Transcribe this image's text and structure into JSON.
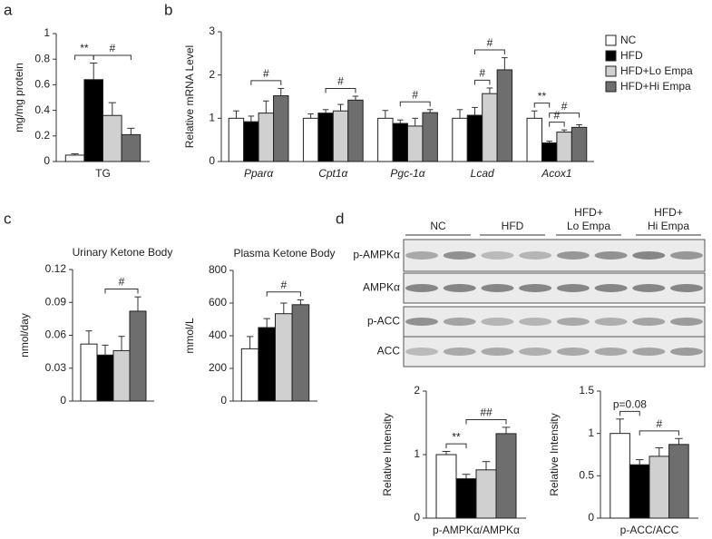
{
  "panel_labels": [
    "a",
    "b",
    "c",
    "d"
  ],
  "chart_data": [
    {
      "type": "bar",
      "ylabel": "mg/mg protein",
      "categories": [
        "TG"
      ],
      "series": [
        {
          "color": "#ffffff",
          "values": [
            0.05
          ],
          "errors": [
            0.01
          ]
        },
        {
          "color": "#000000",
          "values": [
            0.64
          ],
          "errors": [
            0.13
          ]
        },
        {
          "color": "#d0d0d0",
          "values": [
            0.36
          ],
          "errors": [
            0.1
          ]
        },
        {
          "color": "#6e6e6e",
          "values": [
            0.21
          ],
          "errors": [
            0.05
          ]
        }
      ],
      "ylim": [
        0,
        1
      ],
      "yticks": [
        0,
        0.2,
        0.4,
        0.6,
        0.8,
        1
      ],
      "annotations": [
        {
          "text": "**",
          "category": 0,
          "from": 0,
          "to": 1
        },
        {
          "text": "#",
          "category": 0,
          "from": 1,
          "to": 3
        }
      ]
    },
    {
      "type": "bar",
      "ylabel": "Relative mRNA Level",
      "categories": [
        "Pparα",
        "Cpt1α",
        "Pgc-1α",
        "Lcad",
        "Acox1"
      ],
      "category_style": "italic",
      "series": [
        {
          "name": "NC",
          "color": "#ffffff",
          "values": [
            1,
            1,
            1,
            1,
            1
          ],
          "errors": [
            0.17,
            0.1,
            0.18,
            0.2,
            0.17
          ]
        },
        {
          "name": "HFD",
          "color": "#000000",
          "values": [
            0.92,
            1.12,
            0.88,
            1.07,
            0.43
          ],
          "errors": [
            0.13,
            0.08,
            0.08,
            0.18,
            0.04
          ]
        },
        {
          "name": "HFD+Lo Empa",
          "color": "#d0d0d0",
          "values": [
            1.12,
            1.17,
            0.82,
            1.57,
            0.68
          ],
          "errors": [
            0.28,
            0.15,
            0.18,
            0.13,
            0.05
          ]
        },
        {
          "name": "HFD+Hi Empa",
          "color": "#6e6e6e",
          "values": [
            1.52,
            1.42,
            1.13,
            2.12,
            0.79
          ],
          "errors": [
            0.17,
            0.09,
            0.07,
            0.28,
            0.06
          ]
        }
      ],
      "ylim": [
        0,
        3
      ],
      "yticks": [
        0,
        1,
        2,
        3
      ],
      "legend": "right",
      "annotations": [
        {
          "text": "#",
          "category": 0,
          "from": 1,
          "to": 3
        },
        {
          "text": "#",
          "category": 1,
          "from": 1,
          "to": 3
        },
        {
          "text": "#",
          "category": 2,
          "from": 1,
          "to": 3
        },
        {
          "text": "#",
          "category": 3,
          "from": 1,
          "to": 2
        },
        {
          "text": "#",
          "category": 3,
          "from": 1,
          "to": 3
        },
        {
          "text": "**",
          "category": 4,
          "from": 0,
          "to": 1
        },
        {
          "text": "#",
          "category": 4,
          "from": 1,
          "to": 2
        },
        {
          "text": "#",
          "category": 4,
          "from": 1,
          "to": 3
        }
      ]
    },
    {
      "type": "bar",
      "title": "Urinary Ketone Body",
      "ylabel": "nmol/day",
      "categories": [
        null
      ],
      "series": [
        {
          "color": "#ffffff",
          "values": [
            0.052
          ],
          "errors": [
            0.012
          ]
        },
        {
          "color": "#000000",
          "values": [
            0.042
          ],
          "errors": [
            0.009
          ]
        },
        {
          "color": "#d0d0d0",
          "values": [
            0.046
          ],
          "errors": [
            0.013
          ]
        },
        {
          "color": "#6e6e6e",
          "values": [
            0.082
          ],
          "errors": [
            0.013
          ]
        }
      ],
      "ylim": [
        0,
        0.12
      ],
      "yticks": [
        0,
        0.03,
        0.06,
        0.09,
        0.12
      ],
      "annotations": [
        {
          "text": "#",
          "category": 0,
          "from": 1,
          "to": 3
        }
      ]
    },
    {
      "type": "bar",
      "title": "Plasma Ketone Body",
      "ylabel": "mmol/L",
      "categories": [
        null
      ],
      "series": [
        {
          "color": "#ffffff",
          "values": [
            320
          ],
          "errors": [
            75
          ]
        },
        {
          "color": "#000000",
          "values": [
            450
          ],
          "errors": [
            55
          ]
        },
        {
          "color": "#d0d0d0",
          "values": [
            535
          ],
          "errors": [
            65
          ]
        },
        {
          "color": "#6e6e6e",
          "values": [
            590
          ],
          "errors": [
            30
          ]
        }
      ],
      "ylim": [
        0,
        800
      ],
      "yticks": [
        0,
        200,
        400,
        600,
        800
      ],
      "annotations": [
        {
          "text": "#",
          "category": 0,
          "from": 1,
          "to": 3
        }
      ]
    },
    {
      "type": "bar",
      "ylabel": "Relative Intensity",
      "categories": [
        "p-AMPKα/AMPKα"
      ],
      "series": [
        {
          "color": "#ffffff",
          "values": [
            1
          ],
          "errors": [
            0.05
          ]
        },
        {
          "color": "#000000",
          "values": [
            0.62
          ],
          "errors": [
            0.07
          ]
        },
        {
          "color": "#d0d0d0",
          "values": [
            0.76
          ],
          "errors": [
            0.13
          ]
        },
        {
          "color": "#6e6e6e",
          "values": [
            1.33
          ],
          "errors": [
            0.1
          ]
        }
      ],
      "ylim": [
        0,
        2
      ],
      "yticks": [
        0,
        1,
        2
      ],
      "annotations": [
        {
          "text": "**",
          "category": 0,
          "from": 0,
          "to": 1
        },
        {
          "text": "##",
          "category": 0,
          "from": 1,
          "to": 3
        }
      ]
    },
    {
      "type": "bar",
      "ylabel": "Relative Intensity",
      "categories": [
        "p-ACC/ACC"
      ],
      "series": [
        {
          "color": "#ffffff",
          "values": [
            1
          ],
          "errors": [
            0.17
          ]
        },
        {
          "color": "#000000",
          "values": [
            0.63
          ],
          "errors": [
            0.06
          ]
        },
        {
          "color": "#d0d0d0",
          "values": [
            0.73
          ],
          "errors": [
            0.1
          ]
        },
        {
          "color": "#6e6e6e",
          "values": [
            0.87
          ],
          "errors": [
            0.07
          ]
        }
      ],
      "ylim": [
        0,
        1.5
      ],
      "yticks": [
        0,
        0.5,
        1,
        1.5
      ],
      "annotations": [
        {
          "text": "p=0.08",
          "category": 0,
          "from": 0,
          "to": 1
        },
        {
          "text": "#",
          "category": 0,
          "from": 1,
          "to": 3
        }
      ]
    }
  ],
  "blot": {
    "groups": [
      [
        "NC"
      ],
      [
        "HFD"
      ],
      [
        "HFD+",
        "Lo Empa"
      ],
      [
        "HFD+",
        "Hi Empa"
      ]
    ],
    "rows": [
      "p-AMPKα",
      "AMPKα",
      "p-ACC",
      "ACC"
    ]
  }
}
